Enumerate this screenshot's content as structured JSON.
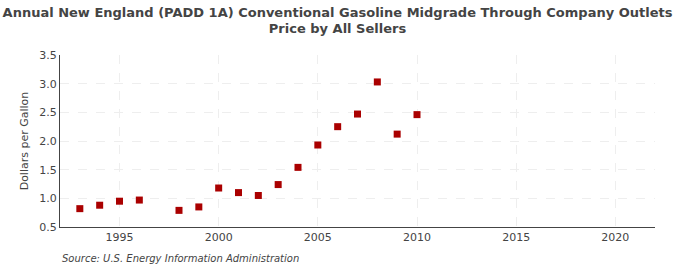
{
  "chart_data": {
    "type": "scatter",
    "title": "Annual New England (PADD 1A) Conventional Gasoline Midgrade Through Company Outlets\nPrice by All Sellers",
    "ylabel": "Dollars per Gallon",
    "source": "Source: U.S. Energy Information Administration",
    "x": [
      1993,
      1994,
      1995,
      1996,
      1998,
      1999,
      2000,
      2001,
      2002,
      2003,
      2004,
      2005,
      2006,
      2007,
      2008,
      2009,
      2010
    ],
    "values": [
      0.82,
      0.88,
      0.95,
      0.97,
      0.79,
      0.85,
      1.18,
      1.1,
      1.05,
      1.24,
      1.54,
      1.93,
      2.25,
      2.47,
      3.03,
      2.12,
      2.46
    ],
    "color": "#aa0000",
    "marker": "square",
    "xlim": [
      1992,
      2022
    ],
    "ylim": [
      0.5,
      3.5
    ],
    "xticks": [
      1995,
      2000,
      2005,
      2010,
      2015,
      2020
    ],
    "yticks": [
      0.5,
      {
        "value": 1,
        "label": "1.0"
      },
      1.5,
      {
        "value": 2,
        "label": "2.0"
      },
      2.5,
      {
        "value": 3,
        "label": "3.0"
      },
      3.5
    ],
    "grid": true
  }
}
